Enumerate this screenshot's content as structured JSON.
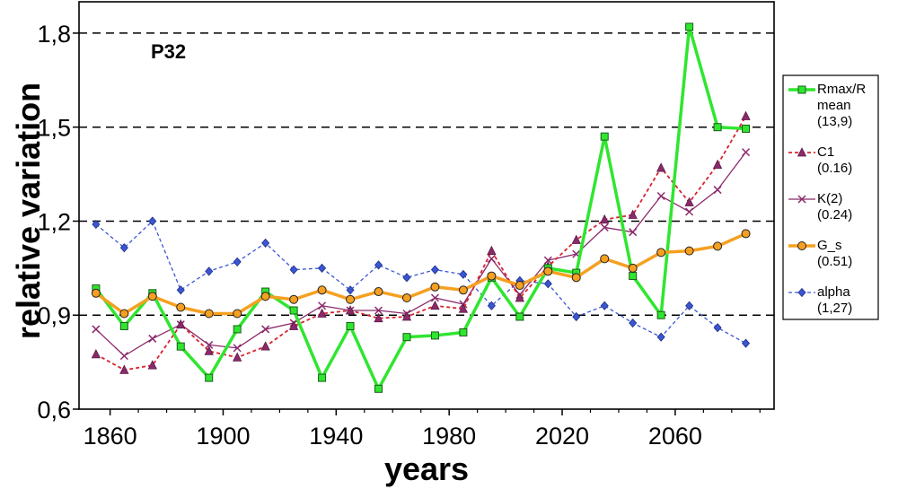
{
  "chart_data": {
    "type": "line",
    "annotation": "P32",
    "xlabel": "years",
    "ylabel": "relative variation",
    "xlim": [
      1849,
      2095
    ],
    "ylim": [
      0.6,
      1.9
    ],
    "x_ticks": [
      1860,
      1900,
      1940,
      1980,
      2020,
      2060
    ],
    "x_tick_labels": [
      "1860",
      "1900",
      "1940",
      "1980",
      "2020",
      "2060"
    ],
    "y_ticks": [
      0.6,
      0.9,
      1.2,
      1.5,
      1.8
    ],
    "y_tick_labels": [
      "0,6",
      "0,9",
      "1,2",
      "1,5",
      "1,8"
    ],
    "grid": "horizontal dashed",
    "legend_position": "right",
    "x": [
      1855,
      1865,
      1875,
      1885,
      1895,
      1905,
      1915,
      1925,
      1935,
      1945,
      1955,
      1965,
      1975,
      1985,
      1995,
      2005,
      2015,
      2025,
      2035,
      2045,
      2055,
      2065,
      2075,
      2085
    ],
    "series": [
      {
        "name": "alpha",
        "value": "(1,27)",
        "color": "#3a56d4",
        "style": "dotted",
        "marker": "diamond",
        "values": [
          1.19,
          1.115,
          1.2,
          0.98,
          1.04,
          1.07,
          1.13,
          1.045,
          1.05,
          0.98,
          1.06,
          1.02,
          1.045,
          1.03,
          0.93,
          1.01,
          1.0,
          0.895,
          0.93,
          0.875,
          0.83,
          0.93,
          0.86,
          0.81
        ]
      },
      {
        "name": "K(2)",
        "value": "(0.24)",
        "color": "#8b2a6b",
        "style": "solid",
        "marker": "x",
        "values": [
          0.855,
          0.77,
          0.825,
          0.87,
          0.805,
          0.795,
          0.855,
          0.875,
          0.93,
          0.915,
          0.915,
          0.905,
          0.955,
          0.935,
          1.08,
          0.965,
          1.075,
          1.095,
          1.18,
          1.165,
          1.28,
          1.23,
          1.3,
          1.42
        ]
      },
      {
        "name": "C1",
        "value": "(0.16)",
        "color": "#d9232e",
        "style": "dotted",
        "marker": "triangle",
        "values": [
          0.775,
          0.725,
          0.74,
          0.87,
          0.785,
          0.765,
          0.8,
          0.865,
          0.905,
          0.915,
          0.89,
          0.895,
          0.93,
          0.92,
          1.105,
          0.955,
          1.055,
          1.14,
          1.205,
          1.22,
          1.37,
          1.26,
          1.38,
          1.535
        ]
      },
      {
        "name": "Rmax/Rmean",
        "value": "(13,9)",
        "color": "#2fe62f",
        "style": "solid",
        "marker": "square",
        "values": [
          0.985,
          0.865,
          0.97,
          0.8,
          0.7,
          0.855,
          0.975,
          0.915,
          0.7,
          0.865,
          0.665,
          0.83,
          0.835,
          0.845,
          1.02,
          0.895,
          1.05,
          1.035,
          1.47,
          1.025,
          0.9,
          1.82,
          1.5,
          1.495
        ]
      },
      {
        "name": "G_s",
        "value": "(0.51)",
        "color": "#f5a020",
        "style": "solid",
        "marker": "circle",
        "values": [
          0.97,
          0.905,
          0.96,
          0.925,
          0.905,
          0.905,
          0.96,
          0.95,
          0.98,
          0.95,
          0.975,
          0.955,
          0.99,
          0.98,
          1.025,
          0.995,
          1.04,
          1.02,
          1.08,
          1.05,
          1.1,
          1.105,
          1.12,
          1.16
        ]
      }
    ],
    "legend": [
      {
        "series": "Rmax/Rmean",
        "lines": [
          "Rmax/R",
          "mean",
          "(13,9)"
        ]
      },
      {
        "series": "C1",
        "lines": [
          "C1",
          "(0.16)"
        ]
      },
      {
        "series": "K(2)",
        "lines": [
          "K(2)",
          "(0.24)"
        ]
      },
      {
        "series": "G_s",
        "lines": [
          "G_s",
          "(0.51)"
        ]
      },
      {
        "series": "alpha",
        "lines": [
          "alpha",
          "(1,27)"
        ]
      }
    ]
  }
}
